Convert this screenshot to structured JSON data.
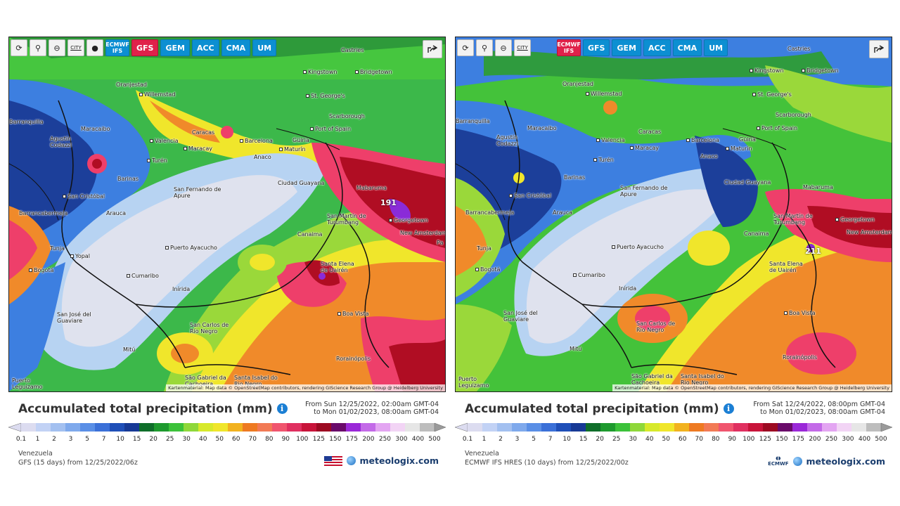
{
  "colors": {
    "land_dry": "#dfe2ee",
    "light_blue": "#b7d3f2",
    "blue": "#3d7fe0",
    "navy": "#1c3f9a",
    "dark_green": "#1f8a2a",
    "green": "#44c23a",
    "light_green": "#9ad83a",
    "yellow": "#f0e62b",
    "orange": "#f08a2a",
    "red_pink": "#ee3f6a",
    "dark_red": "#b00d23",
    "purple": "#8a2bd8",
    "sea_green": "#35b04a",
    "model_active": "#e0224a",
    "model_btn": "#0c8fd2"
  },
  "toolbar": {
    "refresh_icon": "refresh-icon",
    "location_icon": "location-pin-icon",
    "zoom_icon": "zoom-out-icon",
    "city_label": "CITY",
    "dot_icon": "dot-icon",
    "share_icon": "share-icon"
  },
  "left": {
    "models": [
      {
        "label": "ECMWF IFS",
        "active": false
      },
      {
        "label": "GFS",
        "active": true
      },
      {
        "label": "GEM",
        "active": false
      },
      {
        "label": "ACC",
        "active": false
      },
      {
        "label": "CMA",
        "active": false
      },
      {
        "label": "UM",
        "active": false
      }
    ],
    "title": "Accumulated total precipitation (mm)",
    "range_from": "From Sun 12/25/2022, 02:00am GMT-04",
    "range_to": "to Mon 01/02/2023, 08:00am GMT-04",
    "region": "Venezuela",
    "model_line": "GFS (15 days) from 12/25/2022/06z",
    "max_value": "191",
    "attribution": "Kartenmaterial: Map data © OpenStreetMap contributors, rendering GIScience Research Group @ Heidelberg University",
    "brand": "meteologix.com"
  },
  "right": {
    "models": [
      {
        "label": "ECMWF IFS",
        "active": true
      },
      {
        "label": "GFS",
        "active": false
      },
      {
        "label": "GEM",
        "active": false
      },
      {
        "label": "ACC",
        "active": false
      },
      {
        "label": "CMA",
        "active": false
      },
      {
        "label": "UM",
        "active": false
      }
    ],
    "title": "Accumulated total precipitation (mm)",
    "range_from": "From Sat 12/24/2022, 08:00pm GMT-04",
    "range_to": "to Mon 01/02/2023, 08:00am GMT-04",
    "region": "Venezuela",
    "model_line": "ECMWF IFS HRES (10 days) from 12/25/2022/00z",
    "max_value": "211",
    "attribution": "Kartenmaterial: Map data © OpenStreetMap contributors, rendering GIScience Research Group @ Heidelberg University",
    "brand": "meteologix.com",
    "ecmwf_logo": "ECMWF"
  },
  "legend": {
    "ticks": [
      "0.1",
      "1",
      "2",
      "3",
      "5",
      "7",
      "10",
      "15",
      "20",
      "25",
      "30",
      "40",
      "50",
      "60",
      "70",
      "80",
      "90",
      "100",
      "125",
      "150",
      "175",
      "200",
      "250",
      "300",
      "400",
      "500"
    ],
    "colors": [
      "#dcdcf0",
      "#c2d2f5",
      "#a3c0f0",
      "#7fa9ec",
      "#5a8fe6",
      "#3b70d8",
      "#1f4fb8",
      "#173995",
      "#0f6e2a",
      "#1e9a2e",
      "#3cc23a",
      "#8fd83a",
      "#d7e92b",
      "#f0e62b",
      "#f2b21f",
      "#ee7a22",
      "#f27a55",
      "#f0556e",
      "#e03060",
      "#c8143a",
      "#9c0a22",
      "#6a0a6a",
      "#9a28d8",
      "#c36ae8",
      "#e3a5f2",
      "#f2d4f5",
      "#e6e6e6",
      "#bdbdbd"
    ]
  },
  "cities": [
    {
      "name": "Castries"
    },
    {
      "name": "Kingstown"
    },
    {
      "name": "Bridgetown"
    },
    {
      "name": "Oranjestad"
    },
    {
      "name": "Willemstad"
    },
    {
      "name": "St. George's"
    },
    {
      "name": "Scarborough"
    },
    {
      "name": "Port of Spain"
    },
    {
      "name": "Barranquilla"
    },
    {
      "name": "Maracaibo"
    },
    {
      "name": "Caracas"
    },
    {
      "name": "Valencia"
    },
    {
      "name": "Barcelona"
    },
    {
      "name": "Güiria"
    },
    {
      "name": "Maracay"
    },
    {
      "name": "Maturín"
    },
    {
      "name": "Agustín Codazzi"
    },
    {
      "name": "Anaco"
    },
    {
      "name": "Turén"
    },
    {
      "name": "Barinas"
    },
    {
      "name": "Ciudad Guayana"
    },
    {
      "name": "Mabaruma"
    },
    {
      "name": "San Fernando de Apure"
    },
    {
      "name": "San Cristóbal"
    },
    {
      "name": "Barrancabermeja"
    },
    {
      "name": "Arauca"
    },
    {
      "name": "Georgetown"
    },
    {
      "name": "San Martín de Turumbang"
    },
    {
      "name": "New Amsterdam"
    },
    {
      "name": "Canaima"
    },
    {
      "name": "Tunja"
    },
    {
      "name": "Puerto Ayacucho"
    },
    {
      "name": "Yopal"
    },
    {
      "name": "Santa Elena de Uairén"
    },
    {
      "name": "Bogotá"
    },
    {
      "name": "Cumaribo"
    },
    {
      "name": "Inírida"
    },
    {
      "name": "Boa Vista"
    },
    {
      "name": "San José del Guaviare"
    },
    {
      "name": "San Carlos de Río Negro"
    },
    {
      "name": "Mitú"
    },
    {
      "name": "Rorainópolis"
    },
    {
      "name": "São Gabriel da Cachoeira"
    },
    {
      "name": "Santa Isabel do Rio Negro"
    },
    {
      "name": "Puerto Leguízamo"
    },
    {
      "name": "Pa"
    }
  ]
}
